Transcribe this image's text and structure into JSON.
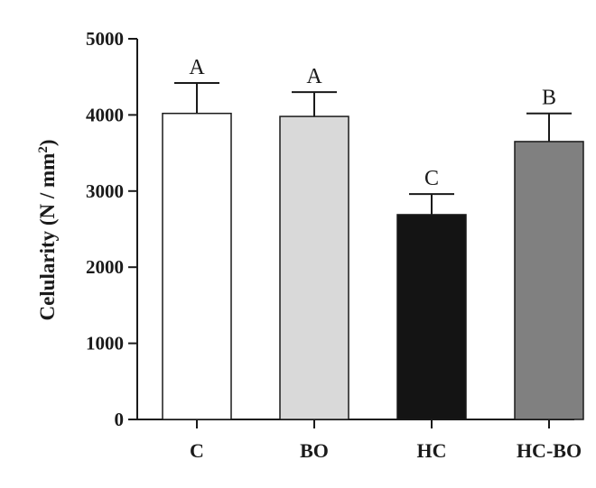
{
  "chart_data": {
    "type": "bar",
    "categories": [
      "C",
      "BO",
      "HC",
      "HC-BO"
    ],
    "values": [
      4020,
      3980,
      2690,
      3650
    ],
    "errors": [
      400,
      320,
      270,
      370
    ],
    "significance": [
      "A",
      "A",
      "C",
      "B"
    ],
    "bar_colors": [
      "#ffffff",
      "#d9d9d9",
      "#141414",
      "#808080"
    ],
    "ylabel_main": "Celularity (N / mm",
    "ylabel_sup": "2",
    "ylabel_end": ")",
    "ylim": [
      0,
      5000
    ],
    "yticks": [
      0,
      1000,
      2000,
      3000,
      4000,
      5000
    ],
    "ytick_labels": [
      "0",
      "1000",
      "2000",
      "3000",
      "4000",
      "5000"
    ],
    "grid": false,
    "legend": "none"
  }
}
